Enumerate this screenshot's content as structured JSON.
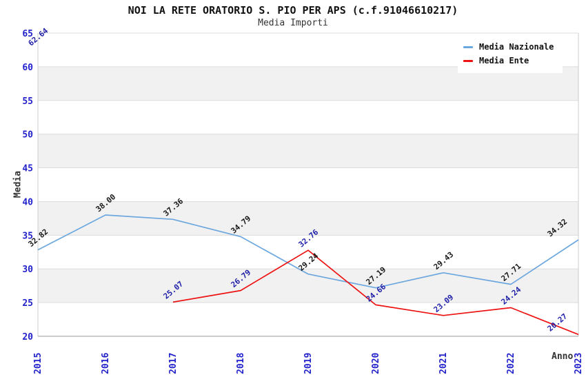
{
  "title": "NOI LA RETE ORATORIO S. PIO PER APS (c.f.91046610217)",
  "subtitle": "Media Importi",
  "legend": {
    "position": "top-right",
    "items": [
      {
        "label": "Media Nazionale",
        "color": "#6BA7DE"
      },
      {
        "label": "Media Ente",
        "color": "#EE1111"
      }
    ]
  },
  "chart_data": {
    "type": "line",
    "x": [
      2015,
      2016,
      2017,
      2018,
      2019,
      2020,
      2021,
      2022,
      2023
    ],
    "xlabel": "Anno",
    "ylabel": "Media",
    "ylim": [
      20,
      65
    ],
    "ytick_step": 5,
    "yticks": [
      20,
      25,
      30,
      35,
      40,
      45,
      50,
      55,
      60,
      65
    ],
    "grid": true,
    "band_fill": "alternate",
    "legend_position": "top-right",
    "series": [
      {
        "name": "Media Nazionale",
        "color": "#6BA7DE",
        "label_color": "#1A1A1A",
        "values": [
          32.82,
          38.0,
          37.36,
          34.79,
          29.24,
          27.19,
          29.43,
          27.71,
          34.32
        ]
      },
      {
        "name": "Media Ente",
        "color": "#EE1111",
        "label_color": "#2222AA",
        "values": [
          62.64,
          null,
          25.07,
          26.79,
          32.76,
          24.66,
          23.09,
          24.24,
          20.27
        ]
      }
    ]
  },
  "colors": {
    "axis_tick_label": "#2222CC",
    "band": "#F1F1F1",
    "gridline": "#DCDCDC",
    "plot_border": "#CCCCCC",
    "x_axis_line": "#999999",
    "axis_title": "#333333"
  }
}
